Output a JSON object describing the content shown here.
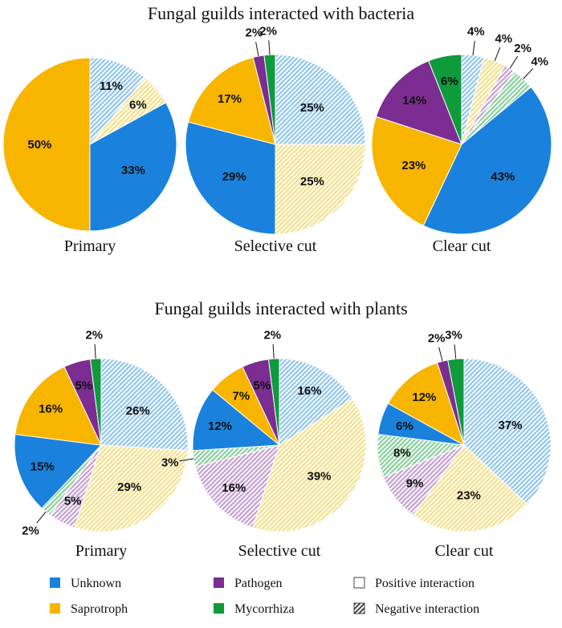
{
  "figure": {
    "title_top": "Fungal guilds interacted with bacteria",
    "title_bottom": "Fungal guilds interacted with plants"
  },
  "colors": {
    "Unknown": "#1a82dc",
    "Saprotroph": "#f7b500",
    "Pathogen": "#7b2d91",
    "Mycorrhiza": "#0f9a3c",
    "Unknown_light": "#8ec5ee",
    "Saprotroph_light": "#f6df87",
    "Pathogen_light": "#c49ed2",
    "Mycorrhiza_light": "#86cf9c"
  },
  "legend": {
    "items": [
      {
        "label": "Unknown",
        "kind": "color",
        "guild": "Unknown"
      },
      {
        "label": "Pathogen",
        "kind": "color",
        "guild": "Pathogen"
      },
      {
        "label": "Positive interaction",
        "kind": "empty"
      },
      {
        "label": "Saprotroph",
        "kind": "color",
        "guild": "Saprotroph"
      },
      {
        "label": "Mycorrhiza",
        "kind": "color",
        "guild": "Mycorrhiza"
      },
      {
        "label": "Negative interaction",
        "kind": "hatched"
      }
    ]
  },
  "chart_data": [
    {
      "type": "pie",
      "group": "Fungal guilds interacted with bacteria",
      "label": "Primary",
      "slices": [
        {
          "guild": "Unknown",
          "interaction": "Negative",
          "value": 11,
          "text": "11%"
        },
        {
          "guild": "Saprotroph",
          "interaction": "Negative",
          "value": 6,
          "text": "6%"
        },
        {
          "guild": "Unknown",
          "interaction": "Positive",
          "value": 33,
          "text": "33%"
        },
        {
          "guild": "Saprotroph",
          "interaction": "Positive",
          "value": 50,
          "text": "50%"
        }
      ]
    },
    {
      "type": "pie",
      "group": "Fungal guilds interacted with bacteria",
      "label": "Selective cut",
      "slices": [
        {
          "guild": "Unknown",
          "interaction": "Negative",
          "value": 25,
          "text": "25%"
        },
        {
          "guild": "Saprotroph",
          "interaction": "Negative",
          "value": 25,
          "text": "25%"
        },
        {
          "guild": "Unknown",
          "interaction": "Positive",
          "value": 29,
          "text": "29%"
        },
        {
          "guild": "Saprotroph",
          "interaction": "Positive",
          "value": 17,
          "text": "17%"
        },
        {
          "guild": "Pathogen",
          "interaction": "Positive",
          "value": 2,
          "text": "2%"
        },
        {
          "guild": "Mycorrhiza",
          "interaction": "Positive",
          "value": 2,
          "text": "2%"
        }
      ]
    },
    {
      "type": "pie",
      "group": "Fungal guilds interacted with bacteria",
      "label": "Clear cut",
      "slices": [
        {
          "guild": "Unknown",
          "interaction": "Negative",
          "value": 4,
          "text": "4%"
        },
        {
          "guild": "Saprotroph",
          "interaction": "Negative",
          "value": 4,
          "text": "4%"
        },
        {
          "guild": "Pathogen",
          "interaction": "Negative",
          "value": 2,
          "text": "2%"
        },
        {
          "guild": "Mycorrhiza",
          "interaction": "Negative",
          "value": 4,
          "text": "4%"
        },
        {
          "guild": "Unknown",
          "interaction": "Positive",
          "value": 43,
          "text": "43%"
        },
        {
          "guild": "Saprotroph",
          "interaction": "Positive",
          "value": 23,
          "text": "23%"
        },
        {
          "guild": "Pathogen",
          "interaction": "Positive",
          "value": 14,
          "text": "14%"
        },
        {
          "guild": "Mycorrhiza",
          "interaction": "Positive",
          "value": 6,
          "text": "6%"
        }
      ]
    },
    {
      "type": "pie",
      "group": "Fungal guilds interacted with plants",
      "label": "Primary",
      "slices": [
        {
          "guild": "Unknown",
          "interaction": "Negative",
          "value": 26,
          "text": "26%"
        },
        {
          "guild": "Saprotroph",
          "interaction": "Negative",
          "value": 29,
          "text": "29%"
        },
        {
          "guild": "Pathogen",
          "interaction": "Negative",
          "value": 5,
          "text": "5%"
        },
        {
          "guild": "Mycorrhiza",
          "interaction": "Negative",
          "value": 2,
          "text": "2%"
        },
        {
          "guild": "Unknown",
          "interaction": "Positive",
          "value": 15,
          "text": "15%"
        },
        {
          "guild": "Saprotroph",
          "interaction": "Positive",
          "value": 16,
          "text": "16%"
        },
        {
          "guild": "Pathogen",
          "interaction": "Positive",
          "value": 5,
          "text": "5%"
        },
        {
          "guild": "Mycorrhiza",
          "interaction": "Positive",
          "value": 2,
          "text": "2%"
        }
      ]
    },
    {
      "type": "pie",
      "group": "Fungal guilds interacted with plants",
      "label": "Selective cut",
      "slices": [
        {
          "guild": "Unknown",
          "interaction": "Negative",
          "value": 16,
          "text": "16%"
        },
        {
          "guild": "Saprotroph",
          "interaction": "Negative",
          "value": 39,
          "text": "39%"
        },
        {
          "guild": "Pathogen",
          "interaction": "Negative",
          "value": 16,
          "text": "16%"
        },
        {
          "guild": "Mycorrhiza",
          "interaction": "Negative",
          "value": 3,
          "text": "3%"
        },
        {
          "guild": "Unknown",
          "interaction": "Positive",
          "value": 12,
          "text": "12%"
        },
        {
          "guild": "Saprotroph",
          "interaction": "Positive",
          "value": 7,
          "text": "7%"
        },
        {
          "guild": "Pathogen",
          "interaction": "Positive",
          "value": 5,
          "text": "5%"
        },
        {
          "guild": "Mycorrhiza",
          "interaction": "Positive",
          "value": 2,
          "text": "2%"
        }
      ]
    },
    {
      "type": "pie",
      "group": "Fungal guilds interacted with plants",
      "label": "Clear cut",
      "slices": [
        {
          "guild": "Unknown",
          "interaction": "Negative",
          "value": 37,
          "text": "37%"
        },
        {
          "guild": "Saprotroph",
          "interaction": "Negative",
          "value": 23,
          "text": "23%"
        },
        {
          "guild": "Pathogen",
          "interaction": "Negative",
          "value": 9,
          "text": "9%"
        },
        {
          "guild": "Mycorrhiza",
          "interaction": "Negative",
          "value": 8,
          "text": "8%"
        },
        {
          "guild": "Unknown",
          "interaction": "Positive",
          "value": 6,
          "text": "6%"
        },
        {
          "guild": "Saprotroph",
          "interaction": "Positive",
          "value": 12,
          "text": "12%"
        },
        {
          "guild": "Pathogen",
          "interaction": "Positive",
          "value": 2,
          "text": "2%"
        },
        {
          "guild": "Mycorrhiza",
          "interaction": "Positive",
          "value": 3,
          "text": "3%"
        }
      ]
    }
  ]
}
